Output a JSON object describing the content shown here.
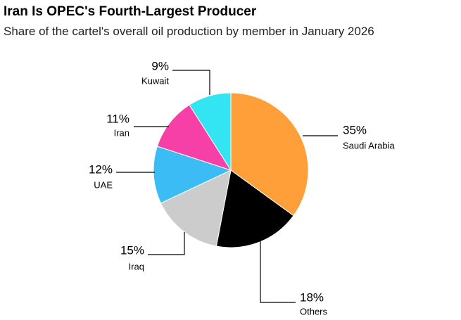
{
  "chart_data": {
    "type": "pie",
    "title": "Iran Is OPEC's Fourth-Largest Producer",
    "subtitle": "Share of the cartel's overall oil production by member in January 2026",
    "categories": [
      "Saudi Arabia",
      "Others",
      "Iraq",
      "UAE",
      "Iran",
      "Kuwait"
    ],
    "values": [
      35,
      18,
      15,
      12,
      11,
      9
    ],
    "value_labels": [
      "35%",
      "18%",
      "15%",
      "12%",
      "11%",
      "9%"
    ],
    "colors": [
      "#ff9f3a",
      "#000000",
      "#cccccc",
      "#3bbcf5",
      "#f73fa8",
      "#33e5f2"
    ]
  }
}
